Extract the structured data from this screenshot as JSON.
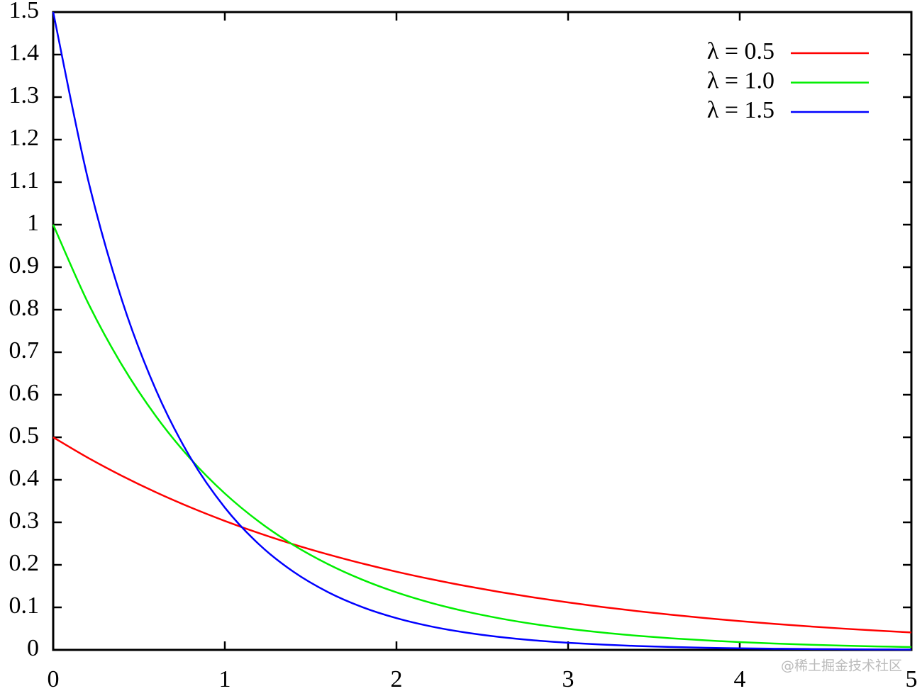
{
  "chart_data": {
    "type": "line",
    "x": [
      0,
      0.2,
      0.4,
      0.6,
      0.8,
      1.0,
      1.2,
      1.4,
      1.6,
      1.8,
      2.0,
      2.2,
      2.4,
      2.6,
      2.8,
      3.0,
      3.2,
      3.4,
      3.6,
      3.8,
      4.0,
      4.2,
      4.4,
      4.6,
      4.8,
      5.0
    ],
    "series": [
      {
        "name": "λ = 0.5",
        "color": "#ff0000",
        "values": [
          0.5,
          0.4524,
          0.4094,
          0.3704,
          0.3352,
          0.3033,
          0.2744,
          0.2483,
          0.2247,
          0.2033,
          0.1839,
          0.1664,
          0.1506,
          0.1363,
          0.1233,
          0.1116,
          0.1009,
          0.0913,
          0.0827,
          0.0748,
          0.0677,
          0.0612,
          0.0554,
          0.0501,
          0.0454,
          0.041
        ]
      },
      {
        "name": "λ = 1.0",
        "color": "#00ee00",
        "values": [
          1,
          0.8187,
          0.6703,
          0.5488,
          0.4493,
          0.3679,
          0.3012,
          0.2466,
          0.2019,
          0.1653,
          0.1353,
          0.1108,
          0.0907,
          0.0743,
          0.0608,
          0.0498,
          0.0408,
          0.0334,
          0.0273,
          0.0224,
          0.0183,
          0.015,
          0.0123,
          0.0101,
          0.0082,
          0.0067
        ]
      },
      {
        "name": "λ = 1.5",
        "color": "#0000ff",
        "values": [
          1.5,
          1.1112,
          0.8232,
          0.6099,
          0.4518,
          0.3347,
          0.2479,
          0.1837,
          0.1361,
          0.1008,
          0.0747,
          0.0553,
          0.041,
          0.0304,
          0.0225,
          0.0167,
          0.0124,
          0.0091,
          0.0068,
          0.005,
          0.0037,
          0.0028,
          0.002,
          0.0015,
          0.0011,
          0.0008
        ]
      }
    ],
    "xlim": [
      0,
      5
    ],
    "xticks": [
      0,
      1,
      2,
      3,
      4,
      5
    ],
    "ylim": [
      0,
      1.5
    ],
    "yticks": [
      0,
      0.1,
      0.2,
      0.3,
      0.4,
      0.5,
      0.6,
      0.7,
      0.8,
      0.9,
      1,
      1.1,
      1.2,
      1.3,
      1.4,
      1.5
    ],
    "legend": "upper-right",
    "grid": false,
    "annotation": "@稀土掘金技术社区"
  }
}
